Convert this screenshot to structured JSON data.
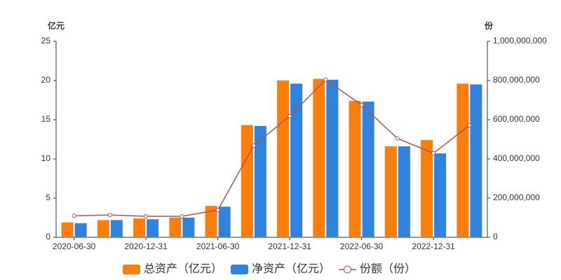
{
  "chart_data": {
    "type": "bar-line",
    "y_axis_title": "亿元",
    "y2_axis_title": "份",
    "categories": [
      "2020-06-30",
      null,
      "2020-12-31",
      null,
      "2021-06-30",
      null,
      "2021-12-31",
      null,
      "2022-06-30",
      null,
      "2022-12-31",
      null
    ],
    "series": [
      {
        "name": "总资产（亿元）",
        "type": "bar",
        "color": "#fb7d0a",
        "values": [
          1.9,
          2.2,
          2.4,
          2.5,
          4.0,
          14.3,
          20.0,
          20.2,
          17.4,
          11.6,
          12.4,
          19.6
        ]
      },
      {
        "name": "净资产（亿元）",
        "type": "bar",
        "color": "#2e82e0",
        "values": [
          1.8,
          2.2,
          2.3,
          2.5,
          3.9,
          14.2,
          19.6,
          20.1,
          17.3,
          11.6,
          10.7,
          19.5
        ]
      },
      {
        "name": "份额（份）",
        "type": "line",
        "axis": "y2",
        "color": "#b5504a",
        "values": [
          110000000,
          114000000,
          107000000,
          107000000,
          139000000,
          468000000,
          618000000,
          804000000,
          675000000,
          504000000,
          429000000,
          571000000
        ]
      }
    ],
    "ylim": [
      0,
      25
    ],
    "yticks": [
      0,
      5,
      10,
      15,
      20,
      25
    ],
    "y2lim": [
      0,
      1000000000
    ],
    "y2ticks": [
      0,
      {
        "value": 200000000,
        "label": "200,000,000"
      },
      {
        "value": 400000000,
        "label": "400,000,000"
      },
      {
        "value": 600000000,
        "label": "600,000,000"
      },
      {
        "value": 800000000,
        "label": "800,000,000"
      },
      {
        "value": 1000000000,
        "label": "1,000,000,000"
      }
    ],
    "legend": "bottom"
  }
}
